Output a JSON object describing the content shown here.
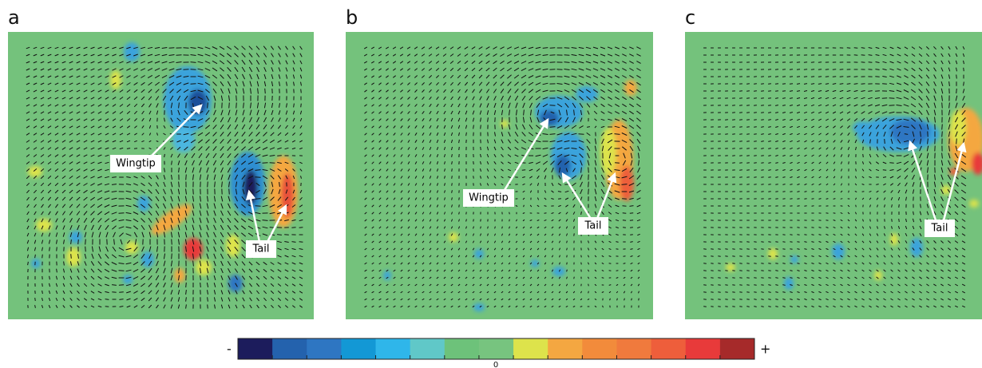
{
  "panels": [
    {
      "label": "a",
      "annotations": [
        "Wingtip",
        "Tail"
      ]
    },
    {
      "label": "b",
      "annotations": [
        "Wingtip",
        "Tail"
      ]
    },
    {
      "label": "c",
      "annotations": [
        "Tail"
      ]
    }
  ],
  "colorbar": {
    "min_label": "-",
    "max_label": "+",
    "mid_label": "0",
    "colors": [
      "#1c1c5c",
      "#2462ad",
      "#2e76c2",
      "#1398d5",
      "#2fb6ea",
      "#60c8c8",
      "#6dc27a",
      "#77c47f",
      "#dde34b",
      "#f4a741",
      "#f28b3b",
      "#f07a3d",
      "#ee5e3b",
      "#e83a3a",
      "#a62a2a"
    ]
  }
}
